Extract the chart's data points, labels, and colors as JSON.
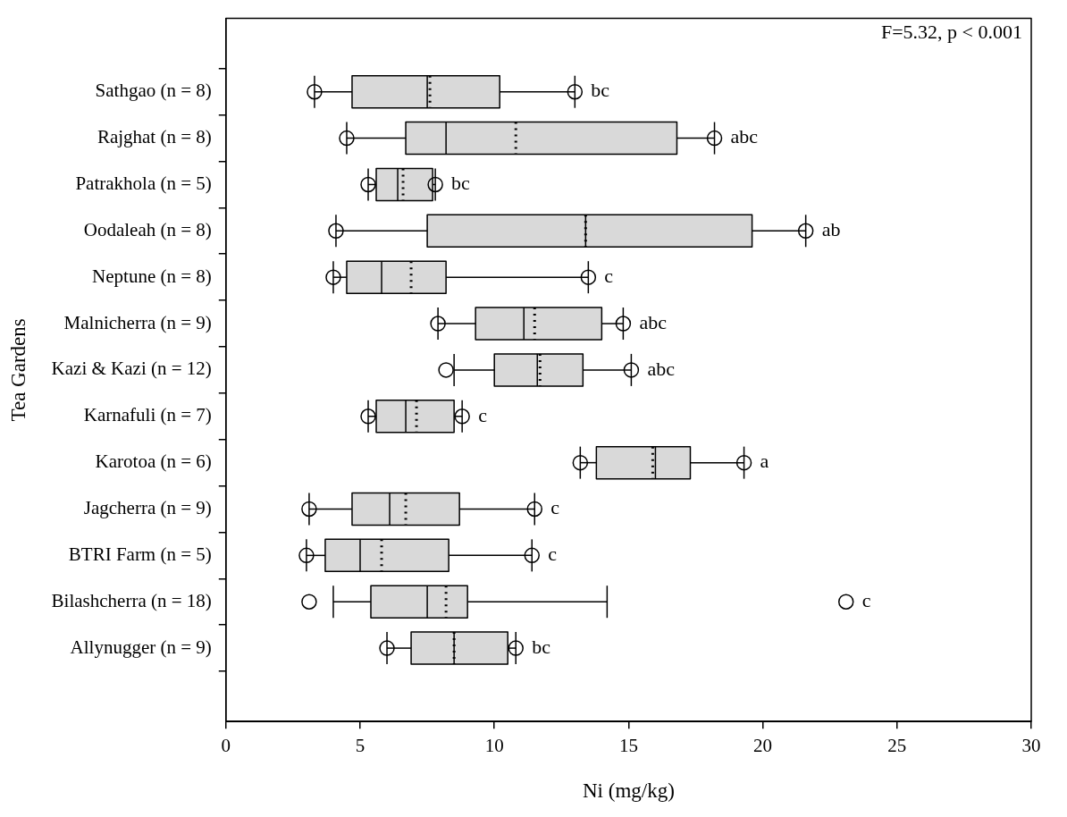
{
  "chart_data": {
    "type": "box",
    "orientation": "horizontal",
    "xlabel": "Ni (mg/kg)",
    "ylabel": "Tea Gardens",
    "categories": [
      "Sathgao (n = 8)",
      "Rajghat (n = 8)",
      "Patrakhola (n = 5)",
      "Oodaleah (n = 8)",
      "Neptune (n = 8)",
      "Malnicherra (n = 9)",
      "Kazi & Kazi (n = 12)",
      "Karnafuli (n = 7)",
      "Karotoa (n = 6)",
      "Jagcherra (n = 9)",
      "BTRI Farm (n = 5)",
      "Bilashcherra (n = 18)",
      "Allynugger (n = 9)"
    ],
    "series": [
      {
        "color": "#d9d9d9",
        "boxes": [
          {
            "low": 3.3,
            "q1": 4.7,
            "median": 7.5,
            "q3": 10.2,
            "high": 13,
            "mean": 7.6,
            "outliers": [
              3.3,
              13
            ]
          },
          {
            "low": 4.5,
            "q1": 6.7,
            "median": 8.2,
            "q3": 16.8,
            "high": 18.2,
            "mean": 10.8,
            "outliers": [
              4.5,
              18.2
            ]
          },
          {
            "low": 5.3,
            "q1": 5.6,
            "median": 6.4,
            "q3": 7.7,
            "high": 7.8,
            "mean": 6.6,
            "outliers": [
              5.3,
              7.8
            ]
          },
          {
            "low": 4.1,
            "q1": 7.5,
            "median": 13.4,
            "q3": 19.6,
            "high": 21.6,
            "mean": 13.4,
            "outliers": [
              4.1,
              21.6
            ]
          },
          {
            "low": 4,
            "q1": 4.5,
            "median": 5.8,
            "q3": 8.2,
            "high": 13.5,
            "mean": 6.9,
            "outliers": [
              4,
              13.5
            ]
          },
          {
            "low": 7.9,
            "q1": 9.3,
            "median": 11.1,
            "q3": 14,
            "high": 14.8,
            "mean": 11.5,
            "outliers": [
              7.9,
              14.8
            ]
          },
          {
            "low": 8.5,
            "q1": 10,
            "median": 11.6,
            "q3": 13.3,
            "high": 15.1,
            "mean": 11.7,
            "outliers": [
              8.2,
              15.1
            ]
          },
          {
            "low": 5.3,
            "q1": 5.6,
            "median": 6.7,
            "q3": 8.5,
            "high": 8.8,
            "mean": 7.1,
            "outliers": [
              5.3,
              8.8
            ]
          },
          {
            "low": 13.2,
            "q1": 13.8,
            "median": 16,
            "q3": 17.3,
            "high": 19.3,
            "mean": 15.9,
            "outliers": [
              13.2,
              19.3
            ]
          },
          {
            "low": 3.1,
            "q1": 4.7,
            "median": 6.1,
            "q3": 8.7,
            "high": 11.5,
            "mean": 6.7,
            "outliers": [
              3.1,
              11.5
            ]
          },
          {
            "low": 3,
            "q1": 3.7,
            "median": 5,
            "q3": 8.3,
            "high": 11.4,
            "mean": 5.8,
            "outliers": [
              3,
              11.4
            ]
          },
          {
            "low": 4,
            "q1": 5.4,
            "median": 7.5,
            "q3": 9,
            "high": 14.2,
            "mean": 8.2,
            "outliers": [
              3.1,
              23.1
            ]
          },
          {
            "low": 6,
            "q1": 6.9,
            "median": 8.5,
            "q3": 10.5,
            "high": 10.8,
            "mean": 8.5,
            "outliers": [
              6,
              10.8
            ]
          }
        ]
      }
    ],
    "xlim": [
      0,
      30
    ],
    "xticks": [
      0,
      5,
      10,
      15,
      20,
      25,
      30
    ],
    "grid": false,
    "legend": false,
    "annotations": [
      "F=5.32, p < 0.001",
      {
        "text": "bc",
        "x": 13,
        "y": "Sathgao (n = 8)"
      },
      {
        "text": "abc",
        "x": 18.2,
        "y": "Rajghat (n = 8)"
      },
      {
        "text": "bc",
        "x": 7.8,
        "y": "Patrakhola (n = 5)"
      },
      {
        "text": "ab",
        "x": 21.6,
        "y": "Oodaleah (n = 8)"
      },
      {
        "text": "c",
        "x": 13.5,
        "y": "Neptune (n = 8)"
      },
      {
        "text": "abc",
        "x": 14.8,
        "y": "Malnicherra (n = 9)"
      },
      {
        "text": "abc",
        "x": 15.1,
        "y": "Kazi & Kazi (n = 12)"
      },
      {
        "text": "c",
        "x": 8.8,
        "y": "Karnafuli (n = 7)"
      },
      {
        "text": "a",
        "x": 19.3,
        "y": "Karotoa (n = 6)"
      },
      {
        "text": "c",
        "x": 11.5,
        "y": "Jagcherra (n = 9)"
      },
      {
        "text": "c",
        "x": 11.4,
        "y": "BTRI Farm (n = 5)"
      },
      "c",
      {
        "text": "bc",
        "x": 10.8,
        "y": "Allynugger (n = 9)"
      }
    ]
  }
}
